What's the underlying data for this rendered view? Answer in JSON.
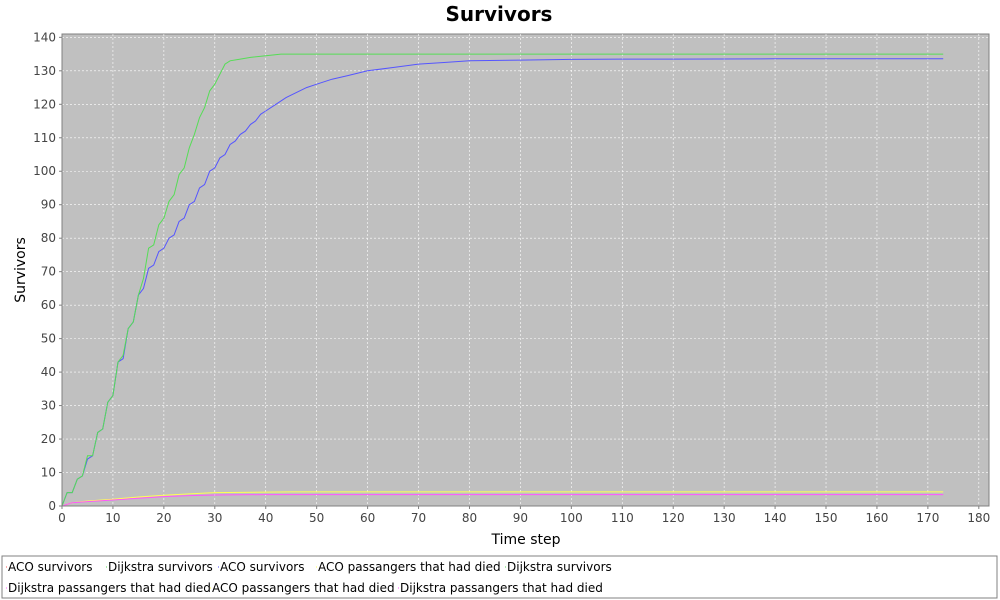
{
  "chart_data": {
    "type": "line",
    "title": "Survivors",
    "xlabel": "Time step",
    "ylabel": "Survivors",
    "xlim": [
      0,
      182
    ],
    "ylim": [
      0,
      141
    ],
    "xticks": [
      "0",
      "10",
      "20",
      "30",
      "40",
      "50",
      "60",
      "70",
      "80",
      "90",
      "100",
      "110",
      "120",
      "130",
      "140",
      "150",
      "160",
      "170",
      "180"
    ],
    "yticks": [
      "0",
      "10",
      "20",
      "30",
      "40",
      "50",
      "60",
      "70",
      "80",
      "90",
      "100",
      "110",
      "120",
      "130",
      "140"
    ],
    "grid": true,
    "legend_position": "bottom",
    "colors": {
      "plot_background": "#c0c0c0",
      "grid": "#ffffff",
      "dijkstra_survivors": "#55dd55",
      "aco_survivors": "#5555ff",
      "aco_died": "#ffff55",
      "dijkstra_died": "#ff55ff",
      "aco_survivors_legend": "#ff5555"
    },
    "legend": [
      {
        "name": "ACO survivors",
        "color": "#ff5555"
      },
      {
        "name": "Dijkstra survivors",
        "color": "#55dd55"
      },
      {
        "name": "ACO survivors",
        "color": "#5555ff"
      },
      {
        "name": "ACO passangers that had died",
        "color": "#ffff55"
      },
      {
        "name": "Dijkstra survivors",
        "color": "#55dd55"
      },
      {
        "name": "Dijkstra passangers that had died",
        "color": "#ff55ff"
      },
      {
        "name": "ACO passangers that had died",
        "color": "#ffff55"
      },
      {
        "name": "Dijkstra passangers that had died",
        "color": "#ff55ff"
      }
    ],
    "series": [
      {
        "name": "Dijkstra survivors",
        "color": "#55dd55",
        "x": [
          0,
          1,
          2,
          3,
          4,
          5,
          6,
          7,
          8,
          9,
          10,
          11,
          12,
          13,
          14,
          15,
          16,
          17,
          18,
          19,
          20,
          21,
          22,
          23,
          24,
          25,
          26,
          27,
          28,
          29,
          30,
          31,
          32,
          33,
          35,
          37,
          40,
          43,
          50,
          60,
          70,
          80,
          100,
          120,
          140,
          160,
          173
        ],
        "y": [
          0,
          4,
          4,
          8,
          9,
          15,
          15,
          22,
          23,
          31,
          33,
          43,
          45,
          53,
          55,
          63,
          68,
          77,
          78,
          84,
          86,
          91,
          93,
          99,
          101,
          107,
          111,
          116,
          119,
          124,
          126,
          129,
          132,
          133,
          133.5,
          134,
          134.5,
          135,
          135,
          135,
          135,
          135,
          135,
          135,
          135,
          135,
          135
        ]
      },
      {
        "name": "ACO survivors",
        "color": "#5555ff",
        "x": [
          0,
          1,
          2,
          3,
          4,
          5,
          6,
          7,
          8,
          9,
          10,
          11,
          12,
          13,
          14,
          15,
          16,
          17,
          18,
          19,
          20,
          21,
          22,
          23,
          24,
          25,
          26,
          27,
          28,
          29,
          30,
          31,
          32,
          33,
          34,
          35,
          36,
          37,
          38,
          39,
          40,
          42,
          44,
          46,
          48,
          50,
          53,
          56,
          60,
          65,
          70,
          75,
          80,
          90,
          100,
          110,
          120,
          140,
          160,
          173
        ],
        "y": [
          0,
          4,
          4,
          8,
          9,
          14,
          15,
          22,
          23,
          31,
          33,
          43,
          44,
          53,
          55,
          63,
          65,
          71,
          72,
          76,
          77,
          80,
          81,
          85,
          86,
          90,
          91,
          95,
          96,
          100,
          101,
          104,
          105,
          108,
          109,
          111,
          112,
          114,
          115,
          117,
          118,
          120,
          122,
          123.5,
          125,
          126,
          127.5,
          128.5,
          130,
          131,
          132,
          132.5,
          133,
          133.2,
          133.4,
          133.5,
          133.5,
          133.6,
          133.6,
          133.6
        ]
      },
      {
        "name": "ACO passangers that had died",
        "color": "#ffff55",
        "x": [
          0,
          2,
          5,
          10,
          15,
          20,
          25,
          30,
          45,
          60,
          80,
          100,
          120,
          140,
          160,
          173
        ],
        "y": [
          0,
          1,
          1.5,
          2,
          2.7,
          3.2,
          3.6,
          4,
          4.2,
          4.2,
          4.2,
          4.2,
          4.2,
          4.2,
          4.2,
          4.2
        ]
      },
      {
        "name": "Dijkstra passangers that had died",
        "color": "#ff55ff",
        "x": [
          0,
          2,
          5,
          10,
          15,
          20,
          25,
          30,
          40,
          60,
          80,
          100,
          120,
          140,
          160,
          173
        ],
        "y": [
          0,
          1,
          1.3,
          1.8,
          2.3,
          2.8,
          3.1,
          3.3,
          3.4,
          3.4,
          3.4,
          3.4,
          3.4,
          3.4,
          3.4,
          3.4
        ]
      }
    ]
  }
}
